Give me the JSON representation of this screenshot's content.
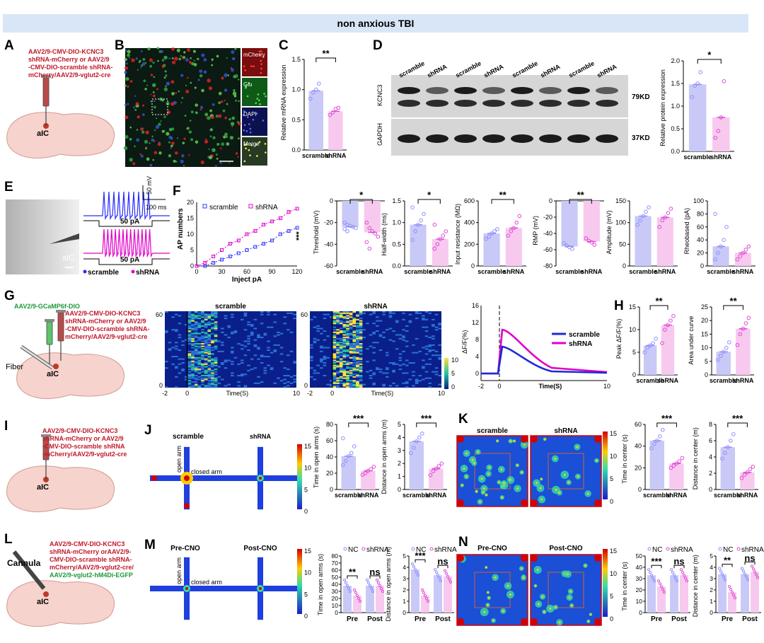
{
  "header": {
    "title": "non anxious TBI"
  },
  "panels": [
    "A",
    "B",
    "C",
    "D",
    "E",
    "F",
    "G",
    "H",
    "I",
    "J",
    "K",
    "L",
    "M",
    "N"
  ],
  "A": {
    "text": [
      "AAV2/9-CMV-DIO-KCNC3",
      "shRNA-mCherry or AAV2/9",
      "-CMV-DIO-scramble shRNA-",
      "mCherry/AAV2/9-vglut2-cre"
    ],
    "region": "aIC"
  },
  "B": {
    "channels": [
      "mCherry",
      "Glu",
      "DAPI",
      "Merge"
    ]
  },
  "G": {
    "virus": "AAV2/9-GCaMP6f-DIO",
    "text": [
      "AAV2/9-CMV-DIO-KCNC3",
      "shRNA-mCherry or AAV2/9",
      "-CMV-DIO-scramble shRNA-",
      "mCherry/AAV2/9-vglut2-cre"
    ],
    "fiber": "Fiber",
    "region": "aIC"
  },
  "I": {
    "text": [
      "AAV2/9-CMV-DIO-KCNC3",
      "shRNA-mCherry or AAV2/9",
      "-CMV-DIO-scramble shRNA",
      "-mCherry/AAV2/9-vglut2-cre"
    ],
    "region": "aIC"
  },
  "L": {
    "text": [
      "AAV2/9-CMV-DIO-KCNC3",
      "shRNA-mCherry orAAV2/9-",
      "CMV-DIO-scramble shRNA-",
      "mCherry/AAV2/9-vglut2-cre/",
      "AAV2/9-vglut2-hM4Di-EGFP"
    ],
    "cannula": "Cannula",
    "region": "aIC"
  },
  "D": {
    "lanes": [
      "scramble",
      "shRNA",
      "scramble",
      "shRNA",
      "scramble",
      "shRNA",
      "scramble",
      "shRNA"
    ],
    "proteins": [
      "KCNC3",
      "GAPDH"
    ],
    "sizes": [
      "79KD",
      "37KD"
    ]
  },
  "E": {
    "scale_mv": "50 mV",
    "scale_ms": "100 ms",
    "stim": "50 pA",
    "region": "aIC",
    "legend": [
      "scramble",
      "shRNA"
    ]
  },
  "F_line": {
    "legend": [
      "scramble",
      "shRNA"
    ],
    "xlabel": "Inject pA",
    "ylabel": "AP numbers",
    "sig": "***",
    "x": [
      0,
      10,
      20,
      30,
      40,
      50,
      60,
      70,
      80,
      90,
      100,
      110,
      120
    ],
    "scramble": [
      0,
      0,
      1,
      2,
      3,
      4,
      5,
      6,
      7,
      8,
      10,
      11,
      12
    ],
    "shRNA": [
      0,
      1,
      3,
      5,
      7,
      8,
      10,
      11,
      13,
      14,
      15,
      17,
      18
    ]
  },
  "groups": [
    "scramble",
    "shRNA"
  ],
  "pre_post": [
    "Pre",
    "Post"
  ],
  "nc_sh": [
    "NC",
    "shRNA"
  ],
  "G_heat": {
    "titles": [
      "scramble",
      "shRNA"
    ],
    "xlabel": "Time(S)",
    "ticks": [
      "-2",
      "0",
      "10"
    ],
    "y": [
      "60",
      "0"
    ],
    "cbar": [
      "10",
      "5",
      "0"
    ]
  },
  "G_trace": {
    "legend": [
      "scramble",
      "shRNA"
    ],
    "xlabel": "Time(S)",
    "ylabel": "ΔF/F(%)",
    "yticks": [
      "16",
      "12",
      "8",
      "4",
      "0"
    ],
    "xticks": [
      "-2",
      "0",
      "10"
    ]
  },
  "J": {
    "titles": [
      "scramble",
      "shRNA"
    ],
    "open_arm": "open arm",
    "closed_arm": "closed arm",
    "cbar": [
      "15",
      "10",
      "5",
      "0"
    ]
  },
  "K": {
    "titles": [
      "scramble",
      "shRNA"
    ],
    "cbar": [
      "15",
      "10",
      "5",
      "0"
    ]
  },
  "M": {
    "titles": [
      "Pre-CNO",
      "Post-CNO"
    ],
    "open_arm": "open arm",
    "closed_arm": "closed arm",
    "cbar": [
      "15",
      "10",
      "5",
      "0"
    ]
  },
  "N": {
    "titles": [
      "Pre-CNO",
      "Post-CNO"
    ],
    "cbar": [
      "15",
      "10",
      "5",
      "0"
    ]
  },
  "chart_data": [
    {
      "id": "C",
      "type": "bar",
      "categories": [
        "scramble",
        "shRNA"
      ],
      "values": [
        0.98,
        0.64
      ],
      "ylabel": "Relative mRNA expression",
      "ylim": [
        0,
        1.5
      ],
      "yticks": [
        "0.0",
        "0.5",
        "1.0",
        "1.5"
      ],
      "sig": [
        "**"
      ],
      "points": [
        [
          0.85,
          0.95,
          1.0,
          1.1
        ],
        [
          0.58,
          0.62,
          0.68,
          0.7
        ]
      ]
    },
    {
      "id": "D",
      "type": "bar",
      "categories": [
        "scramble",
        "shRNA"
      ],
      "values": [
        1.48,
        0.75
      ],
      "ylabel": "Relative protein expression",
      "ylim": [
        0,
        2.0
      ],
      "yticks": [
        "0.0",
        "0.5",
        "1.0",
        "1.5",
        "2.0"
      ],
      "sig": [
        "*"
      ],
      "points": [
        [
          1.2,
          1.45,
          1.5,
          1.75
        ],
        [
          0.3,
          0.45,
          0.75,
          1.55
        ]
      ]
    },
    {
      "id": "F1",
      "type": "bar",
      "categories": [
        "scramble",
        "shRNA"
      ],
      "values": [
        -24,
        -29
      ],
      "ylabel": "Threshold (mV)",
      "ylim": [
        -60,
        0
      ],
      "inverted": true,
      "yticks": [
        "-60",
        "-40",
        "-20",
        "0"
      ],
      "sig": [
        "*"
      ],
      "points": [
        [
          -20,
          -22,
          -23,
          -24,
          -25,
          -26,
          -28
        ],
        [
          -20,
          -25,
          -28,
          -30,
          -33,
          -38,
          -44
        ]
      ]
    },
    {
      "id": "F2",
      "type": "bar",
      "categories": [
        "scramble",
        "shRNA"
      ],
      "values": [
        0.95,
        0.62
      ],
      "ylabel": "Half-width (ms)",
      "ylim": [
        0,
        1.5
      ],
      "yticks": [
        "0.0",
        "0.5",
        "1.0",
        "1.5"
      ],
      "sig": [
        "*"
      ],
      "points": [
        [
          0.6,
          0.8,
          0.95,
          1.05,
          1.2,
          1.35
        ],
        [
          0.4,
          0.5,
          0.62,
          0.7,
          0.8,
          0.95
        ]
      ]
    },
    {
      "id": "F3",
      "type": "bar",
      "categories": [
        "scramble",
        "shRNA"
      ],
      "values": [
        300,
        350
      ],
      "ylabel": "Input resistance (MΩ)",
      "ylim": [
        0,
        600
      ],
      "yticks": [
        "0",
        "200",
        "400",
        "600"
      ],
      "sig": [
        "**"
      ],
      "points": [
        [
          250,
          270,
          300,
          320,
          340
        ],
        [
          280,
          320,
          350,
          400,
          460
        ]
      ]
    },
    {
      "id": "F4",
      "type": "bar",
      "categories": [
        "scramble",
        "shRNA"
      ],
      "values": [
        -56,
        -50
      ],
      "ylabel": "RMP (mV)",
      "ylim": [
        -80,
        0
      ],
      "inverted": true,
      "yticks": [
        "-80",
        "-60",
        "-40",
        "-20",
        "0"
      ],
      "sig": [
        "**"
      ],
      "points": [
        [
          -52,
          -55,
          -57,
          -59
        ],
        [
          -46,
          -49,
          -51,
          -54
        ]
      ]
    },
    {
      "id": "F5",
      "type": "bar",
      "categories": [
        "scramble",
        "shRNA"
      ],
      "values": [
        115,
        112
      ],
      "ylabel": "Amplitude (mV)",
      "ylim": [
        0,
        150
      ],
      "yticks": [
        "0",
        "50",
        "100",
        "150"
      ],
      "sig": [],
      "points": [
        [
          95,
          105,
          115,
          125,
          135
        ],
        [
          90,
          105,
          112,
          122,
          132
        ]
      ]
    },
    {
      "id": "F6",
      "type": "bar",
      "categories": [
        "scramble",
        "shRNA"
      ],
      "values": [
        30,
        20
      ],
      "ylabel": "Rheobased (pA)",
      "ylim": [
        0,
        100
      ],
      "yticks": [
        "0",
        "20",
        "40",
        "60",
        "80",
        "100"
      ],
      "sig": [],
      "points": [
        [
          10,
          20,
          30,
          40,
          60,
          80
        ],
        [
          10,
          15,
          20,
          25,
          30
        ]
      ]
    },
    {
      "id": "H1",
      "type": "bar",
      "categories": [
        "scramble",
        "shRNA"
      ],
      "values": [
        6.5,
        11.0
      ],
      "ylabel": "Peak ΔF/F(%)",
      "ylim": [
        0,
        15
      ],
      "yticks": [
        "0",
        "5",
        "10",
        "15"
      ],
      "sig": [
        "**"
      ],
      "points": [
        [
          5,
          6,
          6.5,
          7,
          8
        ],
        [
          7,
          10,
          11,
          12,
          13
        ]
      ]
    },
    {
      "id": "H2",
      "type": "bar",
      "categories": [
        "scramble",
        "shRNA"
      ],
      "values": [
        8.5,
        17.0
      ],
      "ylabel": "Area under curve",
      "ylim": [
        0,
        25
      ],
      "yticks": [
        "0",
        "5",
        "10",
        "15",
        "20",
        "25"
      ],
      "sig": [
        "**"
      ],
      "points": [
        [
          5.5,
          7,
          8.5,
          10,
          12
        ],
        [
          11,
          15,
          17,
          19,
          21
        ]
      ]
    },
    {
      "id": "J1",
      "type": "bar",
      "categories": [
        "scramble",
        "shRNA"
      ],
      "values": [
        41,
        23
      ],
      "ylabel": "Time in open arms (s)",
      "ylim": [
        0,
        80
      ],
      "yticks": [
        "0",
        "20",
        "40",
        "60",
        "80"
      ],
      "sig": [
        "***"
      ],
      "points": [
        [
          30,
          35,
          41,
          45,
          53,
          63
        ],
        [
          18,
          20,
          23,
          25,
          28
        ]
      ]
    },
    {
      "id": "J2",
      "type": "bar",
      "categories": [
        "scramble",
        "shRNA"
      ],
      "values": [
        3.7,
        1.6
      ],
      "ylabel": "Distance in open arms (m)",
      "ylim": [
        0,
        5
      ],
      "yticks": [
        "0",
        "1",
        "2",
        "3",
        "4",
        "5"
      ],
      "sig": [
        "***"
      ],
      "points": [
        [
          2.8,
          3.2,
          3.7,
          4.0,
          4.3
        ],
        [
          1.1,
          1.4,
          1.6,
          1.8,
          2.0
        ]
      ]
    },
    {
      "id": "K1",
      "type": "bar",
      "categories": [
        "scramble",
        "shRNA"
      ],
      "values": [
        45,
        24
      ],
      "ylabel": "Time in center (s)",
      "ylim": [
        0,
        60
      ],
      "yticks": [
        "0",
        "20",
        "40",
        "60"
      ],
      "sig": [
        "***"
      ],
      "points": [
        [
          38,
          42,
          45,
          49,
          55
        ],
        [
          20,
          22,
          24,
          26,
          29
        ]
      ]
    },
    {
      "id": "K2",
      "type": "bar",
      "categories": [
        "scramble",
        "shRNA"
      ],
      "values": [
        5.2,
        2.1
      ],
      "ylabel": "Distance in center (m)",
      "ylim": [
        0,
        8
      ],
      "yticks": [
        "0",
        "2",
        "4",
        "6",
        "8"
      ],
      "sig": [
        "***"
      ],
      "points": [
        [
          3.8,
          4.5,
          5.2,
          6.0,
          6.8
        ],
        [
          1.4,
          1.8,
          2.1,
          2.5,
          2.8
        ]
      ]
    },
    {
      "id": "M1",
      "type": "grouped-bar",
      "categories": [
        "Pre",
        "Post"
      ],
      "series": [
        {
          "name": "NC",
          "values": [
            38,
            38
          ]
        },
        {
          "name": "shRNA",
          "values": [
            24,
            38
          ]
        }
      ],
      "ylabel": "Time in open arms (s)",
      "ylim": [
        0,
        80
      ],
      "yticks": [
        "0",
        "10",
        "20",
        "30",
        "40",
        "50",
        "60",
        "70",
        "80"
      ],
      "sig": [
        "**",
        "ns"
      ]
    },
    {
      "id": "M2",
      "type": "grouped-bar",
      "categories": [
        "Pre",
        "Post"
      ],
      "series": [
        {
          "name": "NC",
          "values": [
            3.8,
            3.3
          ]
        },
        {
          "name": "shRNA",
          "values": [
            1.5,
            3.2
          ]
        }
      ],
      "ylabel": "Distance in open arms (m)",
      "ylim": [
        0,
        5
      ],
      "yticks": [
        "0",
        "1",
        "2",
        "3",
        "4",
        "5"
      ],
      "sig": [
        "***",
        "ns"
      ]
    },
    {
      "id": "N1",
      "type": "grouped-bar",
      "categories": [
        "Pre",
        "Post"
      ],
      "series": [
        {
          "name": "NC",
          "values": [
            33,
            33
          ]
        },
        {
          "name": "shRNA",
          "values": [
            23,
            33
          ]
        }
      ],
      "ylabel": "Time in center (s)",
      "ylim": [
        0,
        50
      ],
      "yticks": [
        "0",
        "10",
        "20",
        "30",
        "40",
        "50"
      ],
      "sig": [
        "***",
        "ns"
      ]
    },
    {
      "id": "N2",
      "type": "grouped-bar",
      "categories": [
        "Pre",
        "Post"
      ],
      "series": [
        {
          "name": "NC",
          "values": [
            3.4,
            3.4
          ]
        },
        {
          "name": "shRNA",
          "values": [
            1.8,
            3.6
          ]
        }
      ],
      "ylabel": "Distance in center (m)",
      "ylim": [
        0,
        5
      ],
      "yticks": [
        "0",
        "1",
        "2",
        "3",
        "4",
        "5"
      ],
      "sig": [
        "**",
        "ns"
      ]
    }
  ]
}
